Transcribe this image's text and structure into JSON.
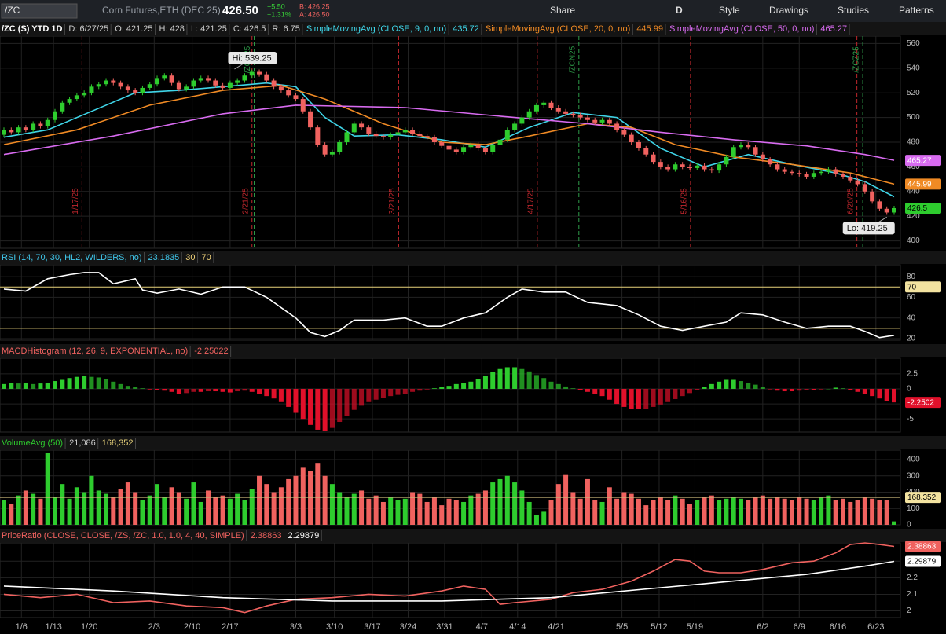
{
  "toolbar": {
    "symbol": "/ZC",
    "description": "Corn Futures,ETH (DEC 25)",
    "last": "426.50",
    "change": "+5.50",
    "change_pct": "+1.31%",
    "bid": "B: 426.25",
    "ask": "A: 426.50",
    "buttons": [
      "Share",
      "D",
      "Style",
      "Drawings",
      "Studies",
      "Patterns"
    ]
  },
  "chart_data": [
    {
      "type": "candlestick",
      "header": [
        {
          "text": "/ZC (S) YTD 1D",
          "color": "#ffffff"
        },
        {
          "text": "D: 6/27/25",
          "color": "#cccccc"
        },
        {
          "text": "O: 421.25",
          "color": "#cccccc"
        },
        {
          "text": "H: 428",
          "color": "#cccccc"
        },
        {
          "text": "L: 421.25",
          "color": "#cccccc"
        },
        {
          "text": "C: 426.5",
          "color": "#cccccc"
        },
        {
          "text": "R: 6.75",
          "color": "#cccccc"
        },
        {
          "text": "SimpleMovingAvg (CLOSE, 9, 0, no)",
          "color": "#3fd5e8"
        },
        {
          "text": "435.72",
          "color": "#3fd5e8"
        },
        {
          "text": "SimpleMovingAvg (CLOSE, 20, 0, no)",
          "color": "#f08a24"
        },
        {
          "text": "445.99",
          "color": "#f08a24"
        },
        {
          "text": "SimpleMovingAvg (CLOSE, 50, 0, no)",
          "color": "#d86bf0"
        },
        {
          "text": "465.27",
          "color": "#d86bf0"
        }
      ],
      "first_open": 486,
      "up_color": "#2ecc2e",
      "down_color": "#f0625f",
      "box": true,
      "values": [
        490,
        488,
        492,
        490,
        495,
        493,
        498,
        505,
        512,
        515,
        518,
        520,
        525,
        527,
        530,
        528,
        525,
        522,
        520,
        524,
        527,
        532,
        534,
        528,
        523,
        525,
        530,
        532,
        530,
        526,
        524,
        528,
        530,
        534,
        537,
        535,
        530,
        525,
        522,
        518,
        515,
        505,
        492,
        478,
        470,
        472,
        480,
        488,
        495,
        492,
        487,
        485,
        484,
        486,
        488,
        490,
        487,
        485,
        484,
        480,
        477,
        474,
        472,
        476,
        478,
        475,
        472,
        478,
        482,
        490,
        495,
        500,
        505,
        510,
        512,
        508,
        505,
        503,
        502,
        500,
        498,
        496,
        498,
        495,
        490,
        486,
        480,
        475,
        470,
        464,
        460,
        458,
        462,
        460,
        459,
        461,
        458,
        457,
        462,
        468,
        476,
        478,
        476,
        470,
        466,
        462,
        458,
        456,
        455,
        454,
        452,
        455,
        456,
        458,
        454,
        452,
        449,
        446,
        440,
        432,
        426,
        423,
        426.5
      ],
      "lines": [
        {
          "color": "#3fd5e8",
          "x": [
            0,
            6,
            12,
            18,
            24,
            30,
            36,
            40,
            44,
            48,
            54,
            60,
            66,
            72,
            78,
            84,
            90,
            96,
            102,
            108,
            114,
            118,
            122
          ],
          "values": [
            484,
            490,
            505,
            520,
            522,
            525,
            528,
            525,
            500,
            485,
            486,
            482,
            476,
            492,
            504,
            500,
            475,
            460,
            470,
            462,
            455,
            448,
            435.72
          ],
          "box": false
        },
        {
          "color": "#f08a24",
          "x": [
            0,
            10,
            20,
            30,
            38,
            44,
            52,
            60,
            66,
            72,
            80,
            86,
            92,
            100,
            108,
            116,
            122
          ],
          "values": [
            478,
            490,
            510,
            522,
            526,
            515,
            495,
            480,
            478,
            485,
            495,
            492,
            478,
            468,
            462,
            455,
            445.99
          ],
          "box": true
        },
        {
          "color": "#d86bf0",
          "x": [
            0,
            15,
            30,
            40,
            55,
            70,
            80,
            90,
            100,
            110,
            118,
            122
          ],
          "values": [
            470,
            485,
            503,
            510,
            508,
            500,
            495,
            488,
            482,
            477,
            470,
            465.27
          ],
          "box": true
        }
      ],
      "events": [
        {
          "x": 10.7,
          "label": "1/17/25",
          "color": "#c0272d"
        },
        {
          "x": 34,
          "label": "2/21/25",
          "color": "#c0272d"
        },
        {
          "x": 54.1,
          "label": "3/21/25",
          "color": "#c0272d"
        },
        {
          "x": 73.1,
          "label": "4/17/25",
          "color": "#c0272d"
        },
        {
          "x": 94.1,
          "label": "5/16/25",
          "color": "#c0272d"
        },
        {
          "x": 116.9,
          "label": "6/20/25",
          "color": "#c0272d"
        },
        {
          "x": 34.3,
          "label": "/ZCH25",
          "color": "#2e9e4a"
        },
        {
          "x": 78.8,
          "label": "/ZCN25",
          "color": "#2e9e4a"
        },
        {
          "x": 117.7,
          "label": "/ZCZ25",
          "color": "#2e9e4a"
        }
      ],
      "callouts": [
        {
          "x": 31.6,
          "value": 539.25,
          "label": "Hi: 539.25"
        },
        {
          "x": 121,
          "value": 419.25,
          "label": "Lo: 419.25"
        }
      ],
      "xlim": [
        0,
        122
      ],
      "ylim": [
        394,
        566
      ],
      "yticks": [
        400,
        420,
        440,
        460,
        480,
        500,
        520,
        540,
        560
      ]
    },
    {
      "type": "line",
      "header": [
        {
          "text": "RSI (14, 70, 30, HL2, WILDERS, no)",
          "color": "#3fc6ea"
        },
        {
          "text": "23.1835",
          "color": "#3fc6ea"
        },
        {
          "text": "30",
          "color": "#f5d67b"
        },
        {
          "text": "70",
          "color": "#f5d67b"
        }
      ],
      "levels": [
        {
          "value": 70,
          "color": "#e8d27a",
          "box": true
        },
        {
          "value": 30,
          "color": "#e8d27a",
          "box": false
        }
      ],
      "series": [
        {
          "color": "#ffffff",
          "x": [
            0,
            3,
            6,
            9,
            11,
            13,
            15,
            18,
            19,
            21,
            24,
            27,
            30,
            33,
            36,
            40,
            42,
            44,
            46,
            48,
            52,
            55,
            58,
            60,
            63,
            66,
            69,
            71,
            74,
            77,
            80,
            84,
            87,
            90,
            93,
            96,
            99,
            101,
            104,
            107,
            110,
            113,
            116,
            118,
            120,
            122
          ],
          "values": [
            68,
            66,
            78,
            82,
            84,
            84,
            73,
            78,
            67,
            64,
            68,
            63,
            70,
            70,
            60,
            40,
            26,
            22,
            28,
            38,
            38,
            40,
            32,
            32,
            40,
            45,
            60,
            68,
            65,
            65,
            55,
            52,
            43,
            32,
            28,
            32,
            36,
            45,
            43,
            36,
            30,
            32,
            32,
            27,
            21,
            23.1835
          ],
          "box": false
        }
      ],
      "xlim": [
        0,
        122
      ],
      "ylim": [
        18.5,
        91.5
      ],
      "yticks": [
        20,
        40,
        60,
        80
      ]
    },
    {
      "type": "bar",
      "header": [
        {
          "text": "MACDHistogram (12, 26, 9, EXPONENTIAL, no)",
          "color": "#f0625f"
        },
        {
          "text": "-2.25022",
          "color": "#f0625f"
        }
      ],
      "up_color": "#2ecc2e",
      "down_color": "#e0102a",
      "box": true,
      "values": [
        0.8,
        1.0,
        0.9,
        1.0,
        0.8,
        0.9,
        1.0,
        1.3,
        1.5,
        1.8,
        2.0,
        2.1,
        2.0,
        1.9,
        1.6,
        1.2,
        0.8,
        0.5,
        0.3,
        0.1,
        -0.1,
        -0.2,
        -0.3,
        -0.5,
        -0.8,
        -0.7,
        -0.5,
        -0.5,
        -0.4,
        -0.4,
        -0.5,
        -0.6,
        -0.4,
        -0.3,
        -0.5,
        -0.8,
        -1.2,
        -1.6,
        -2.2,
        -3.0,
        -4.0,
        -5.0,
        -6.0,
        -6.8,
        -7.0,
        -6.5,
        -5.5,
        -4.5,
        -3.5,
        -2.8,
        -2.2,
        -1.8,
        -1.5,
        -1.2,
        -1.0,
        -0.8,
        -0.5,
        -0.3,
        -0.1,
        0.1,
        0.3,
        0.5,
        0.8,
        1.0,
        1.2,
        1.6,
        2.2,
        2.8,
        3.3,
        3.6,
        3.6,
        3.3,
        2.9,
        2.3,
        1.8,
        1.2,
        0.8,
        0.4,
        0.1,
        -0.2,
        -0.5,
        -0.8,
        -1.2,
        -1.8,
        -2.5,
        -3.0,
        -3.3,
        -3.4,
        -3.3,
        -3.0,
        -2.6,
        -2.2,
        -1.7,
        -1.2,
        -0.7,
        -0.2,
        0.3,
        0.8,
        1.2,
        1.5,
        1.5,
        1.3,
        1.0,
        0.7,
        0.3,
        -0.1,
        -0.3,
        -0.4,
        -0.4,
        -0.3,
        -0.2,
        -0.2,
        -0.1,
        0.0,
        0.2,
        0.1,
        -0.2,
        -0.5,
        -0.8,
        -1.2,
        -1.6,
        -2.0,
        -2.2502
      ],
      "xlim": [
        0,
        122
      ],
      "ylim": [
        -7.2,
        5.1
      ],
      "yticks": [
        2.5,
        0,
        -2.5,
        -5
      ]
    },
    {
      "type": "volume",
      "header": [
        {
          "text": "VolumeAvg (50)",
          "color": "#2ecc2e"
        },
        {
          "text": "21,086",
          "color": "#cccccc"
        },
        {
          "text": "168,352",
          "color": "#e8d27a"
        }
      ],
      "avg": 168352,
      "avg_label": "168.352",
      "avg_color": "#c9b77a",
      "values": [
        150000,
        130000,
        180000,
        210000,
        190000,
        160000,
        440000,
        170000,
        250000,
        160000,
        230000,
        200000,
        300000,
        210000,
        190000,
        170000,
        220000,
        260000,
        200000,
        150000,
        180000,
        250000,
        170000,
        230000,
        200000,
        160000,
        260000,
        140000,
        210000,
        170000,
        180000,
        160000,
        190000,
        150000,
        220000,
        300000,
        250000,
        200000,
        230000,
        280000,
        300000,
        350000,
        330000,
        380000,
        300000,
        250000,
        200000,
        170000,
        190000,
        210000,
        160000,
        180000,
        140000,
        170000,
        150000,
        160000,
        200000,
        190000,
        140000,
        170000,
        120000,
        160000,
        150000,
        140000,
        180000,
        190000,
        210000,
        260000,
        280000,
        300000,
        260000,
        210000,
        140000,
        60000,
        80000,
        150000,
        250000,
        310000,
        200000,
        160000,
        280000,
        150000,
        140000,
        230000,
        160000,
        200000,
        190000,
        160000,
        120000,
        150000,
        170000,
        150000,
        180000,
        160000,
        130000,
        150000,
        170000,
        180000,
        150000,
        160000,
        170000,
        160000,
        150000,
        170000,
        180000,
        160000,
        170000,
        160000,
        150000,
        170000,
        160000,
        150000,
        170000,
        180000,
        150000,
        160000,
        140000,
        150000,
        170000,
        160000,
        150000,
        150000,
        21086
      ],
      "xlim": [
        0,
        122
      ],
      "ylim": [
        0,
        458000
      ],
      "yticks": [
        {
          "value": 0,
          "label": "0"
        },
        {
          "value": 100000,
          "label": "100"
        },
        {
          "value": 200000,
          "label": "200"
        },
        {
          "value": 300000,
          "label": "300"
        },
        {
          "value": 400000,
          "label": "400"
        }
      ]
    },
    {
      "type": "line",
      "header": [
        {
          "text": "PriceRatio (CLOSE, CLOSE, /ZS, /ZC, 1.0, 1.0, 4, 40, SIMPLE)",
          "color": "#f0625f"
        },
        {
          "text": "2.38863",
          "color": "#f0625f"
        },
        {
          "text": "2.29879",
          "color": "#ffffff"
        }
      ],
      "levels": [],
      "series": [
        {
          "color": "#f0625f",
          "x": [
            0,
            5,
            10,
            15,
            20,
            25,
            30,
            33,
            36,
            40,
            45,
            50,
            55,
            60,
            63,
            66,
            68,
            70,
            75,
            78,
            82,
            86,
            89,
            92,
            94,
            96,
            98,
            101,
            104,
            108,
            111,
            114,
            116,
            118,
            120,
            122
          ],
          "values": [
            2.1,
            2.08,
            2.1,
            2.05,
            2.06,
            2.03,
            2.02,
            1.99,
            2.03,
            2.07,
            2.08,
            2.1,
            2.09,
            2.12,
            2.15,
            2.13,
            2.04,
            2.05,
            2.07,
            2.11,
            2.13,
            2.18,
            2.24,
            2.31,
            2.3,
            2.24,
            2.23,
            2.23,
            2.25,
            2.29,
            2.3,
            2.35,
            2.4,
            2.41,
            2.4,
            2.38863
          ],
          "box": true
        },
        {
          "color": "#ffffff",
          "x": [
            0,
            15,
            30,
            45,
            60,
            75,
            90,
            100,
            110,
            118,
            122
          ],
          "values": [
            2.15,
            2.12,
            2.08,
            2.06,
            2.06,
            2.08,
            2.14,
            2.18,
            2.22,
            2.27,
            2.29879
          ],
          "box": true
        }
      ],
      "xlim": [
        0,
        122
      ],
      "ylim": [
        1.96,
        2.41
      ],
      "yticks": [
        2,
        2.1,
        2.2,
        2.3
      ],
      "xticks": [
        {
          "value": 2.4,
          "label": "1/6"
        },
        {
          "value": 6.8,
          "label": "1/13"
        },
        {
          "value": 11.7,
          "label": "1/20"
        },
        {
          "value": 20.6,
          "label": "2/3"
        },
        {
          "value": 25.8,
          "label": "2/10"
        },
        {
          "value": 31,
          "label": "2/17"
        },
        {
          "value": 40,
          "label": "3/3"
        },
        {
          "value": 45.3,
          "label": "3/10"
        },
        {
          "value": 50.5,
          "label": "3/17"
        },
        {
          "value": 55.4,
          "label": "3/24"
        },
        {
          "value": 60.4,
          "label": "3/31"
        },
        {
          "value": 65.5,
          "label": "4/7"
        },
        {
          "value": 70.4,
          "label": "4/14"
        },
        {
          "value": 75.7,
          "label": "4/21"
        },
        {
          "value": 84.7,
          "label": "5/5"
        },
        {
          "value": 89.8,
          "label": "5/12"
        },
        {
          "value": 94.7,
          "label": "5/19"
        },
        {
          "value": 104,
          "label": "6/2"
        },
        {
          "value": 109,
          "label": "6/9"
        },
        {
          "value": 114.3,
          "label": "6/16"
        },
        {
          "value": 119.5,
          "label": "6/23"
        }
      ]
    }
  ]
}
